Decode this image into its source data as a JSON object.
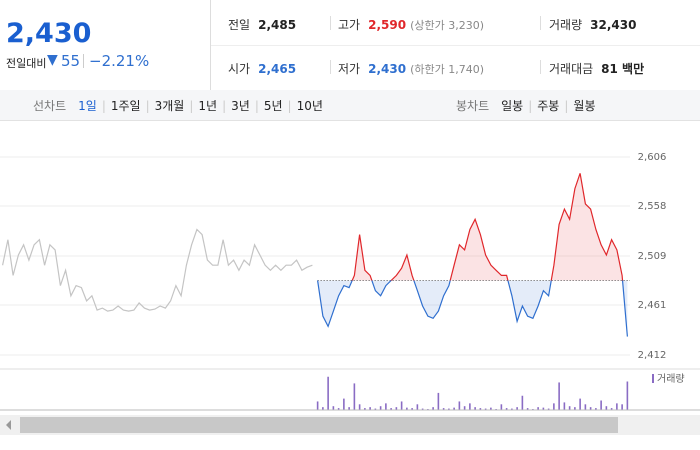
{
  "header": {
    "price": "2,430",
    "change_label": "전일대비",
    "change_arrow": "▼",
    "change": "55",
    "change_pct": "−2.21%"
  },
  "info": [
    {
      "label": "전일",
      "value": "2,485"
    },
    {
      "label": "고가",
      "value": "2,590",
      "note": "(상한가 3,230)"
    },
    {
      "label": "거래량",
      "value": "32,430"
    },
    {
      "label": "시가",
      "value": "2,465"
    },
    {
      "label": "저가",
      "value": "2,430",
      "note": "(하한가 1,740)"
    },
    {
      "label": "거래대금",
      "value": "81 백만"
    }
  ],
  "toolbar": {
    "line_label": "선차트",
    "periods": [
      "1일",
      "1주일",
      "3개월",
      "1년",
      "3년",
      "5년",
      "10년"
    ],
    "candle_label": "봉차트",
    "candle_periods": [
      "일봉",
      "주봉",
      "월봉"
    ]
  },
  "chart_data": {
    "type": "line",
    "ylim": [
      2412,
      2606
    ],
    "yticks": [
      {
        "value": 2412,
        "label": "2,412"
      },
      {
        "value": 2461,
        "label": "2,461"
      },
      {
        "value": 2509,
        "label": "2,509"
      },
      {
        "value": 2558,
        "label": "2,558"
      },
      {
        "value": 2606,
        "label": "2,606"
      }
    ],
    "grid": true,
    "baseline": 2485,
    "up_color": "#e0272b",
    "down_color": "#2f6fcf",
    "series": [
      {
        "color": "#c4c4c4",
        "values": [
          2500,
          2525,
          2490,
          2510,
          2520,
          2505,
          2520,
          2525,
          2500,
          2520,
          2515,
          2480,
          2495,
          2470,
          2480,
          2478,
          2465,
          2470,
          2456,
          2458,
          2455,
          2456,
          2460,
          2456,
          2455,
          2456,
          2463,
          2458,
          2456,
          2457,
          2460,
          2458,
          2465,
          2480,
          2470,
          2500,
          2520,
          2535,
          2530,
          2505,
          2500,
          2500,
          2525,
          2500,
          2505,
          2495,
          2505,
          2500,
          2520,
          2510,
          2500,
          2495,
          2500,
          2495,
          2500,
          2500,
          2505,
          2495,
          2498,
          2500
        ]
      },
      {
        "values": [
          2485,
          2450,
          2440,
          2455,
          2470,
          2480,
          2478,
          2490,
          2530,
          2495,
          2490,
          2475,
          2470,
          2480,
          2485,
          2490,
          2497,
          2510,
          2490,
          2475,
          2460,
          2450,
          2448,
          2455,
          2470,
          2480,
          2500,
          2520,
          2515,
          2535,
          2545,
          2530,
          2510,
          2500,
          2495,
          2490,
          2490,
          2470,
          2445,
          2460,
          2450,
          2448,
          2460,
          2475,
          2470,
          2500,
          2540,
          2555,
          2545,
          2575,
          2590,
          2560,
          2555,
          2535,
          2520,
          2510,
          2525,
          2515,
          2490,
          2430
        ]
      }
    ],
    "volume": {
      "name": "거래량",
      "color": "#8a6cc4",
      "ylim": [
        0,
        4000
      ],
      "values": [
        900,
        300,
        3500,
        400,
        200,
        1200,
        300,
        2800,
        600,
        200,
        300,
        150,
        400,
        700,
        200,
        300,
        900,
        250,
        200,
        600,
        150,
        100,
        300,
        1800,
        200,
        150,
        250,
        900,
        400,
        700,
        300,
        200,
        150,
        250,
        100,
        600,
        200,
        150,
        300,
        1500,
        200,
        100,
        300,
        250,
        150,
        700,
        2900,
        800,
        400,
        300,
        1200,
        600,
        300,
        200,
        1000,
        400,
        200,
        700,
        600,
        3000
      ]
    }
  }
}
